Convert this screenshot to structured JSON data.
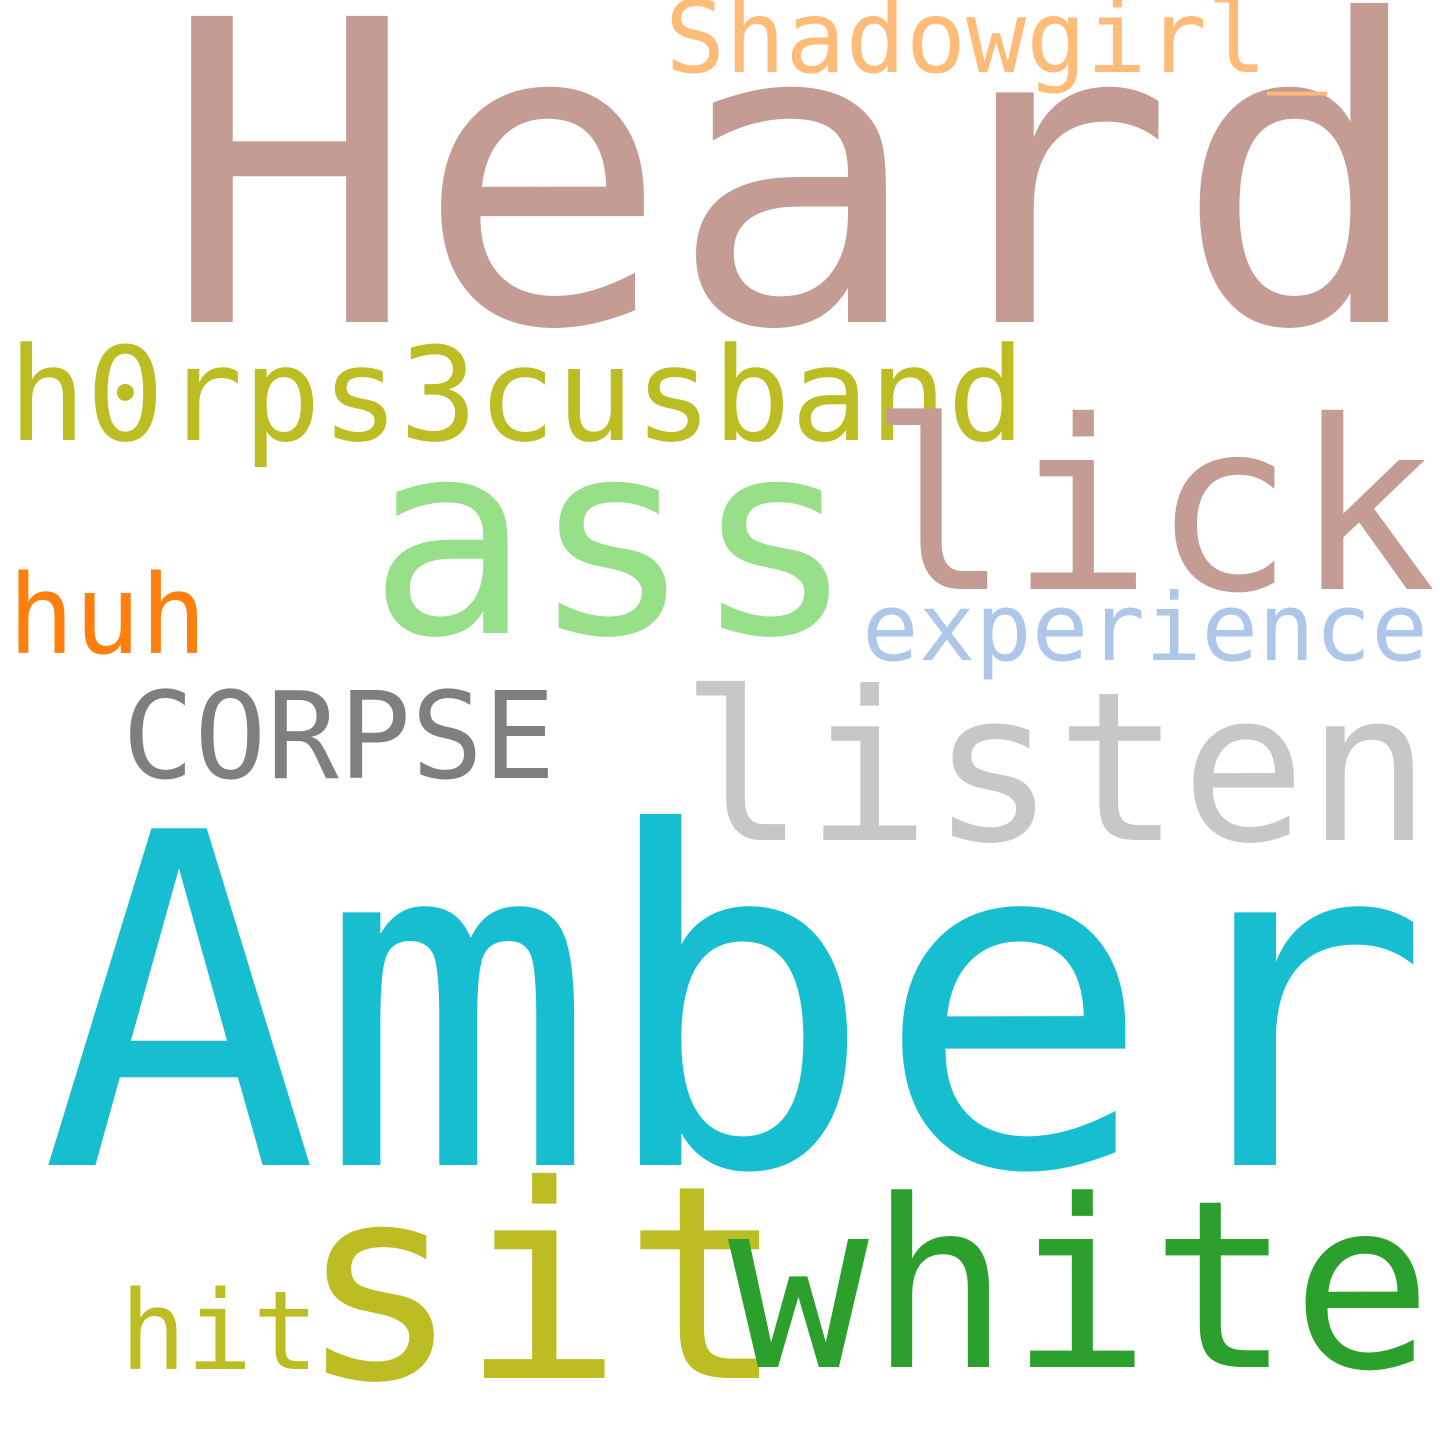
{
  "words": [
    {
      "text": "Heard",
      "color": "#c49c94"
    },
    {
      "text": "Shadowgirl_",
      "color": "#ffbb78"
    },
    {
      "text": "h0rps3cusband",
      "color": "#bcbd22"
    },
    {
      "text": "ass",
      "color": "#98df8a"
    },
    {
      "text": "lick",
      "color": "#c49c94"
    },
    {
      "text": "huh",
      "color": "#ff7f0e"
    },
    {
      "text": "experience",
      "color": "#aec7e8"
    },
    {
      "text": "CORPSE",
      "color": "#7f7f7f"
    },
    {
      "text": "listen",
      "color": "#c7c7c7"
    },
    {
      "text": "Amber",
      "color": "#17becf"
    },
    {
      "text": "sit",
      "color": "#bcbd22"
    },
    {
      "text": "white",
      "color": "#2ca02c"
    },
    {
      "text": "hit",
      "color": "#bcbd22"
    }
  ]
}
